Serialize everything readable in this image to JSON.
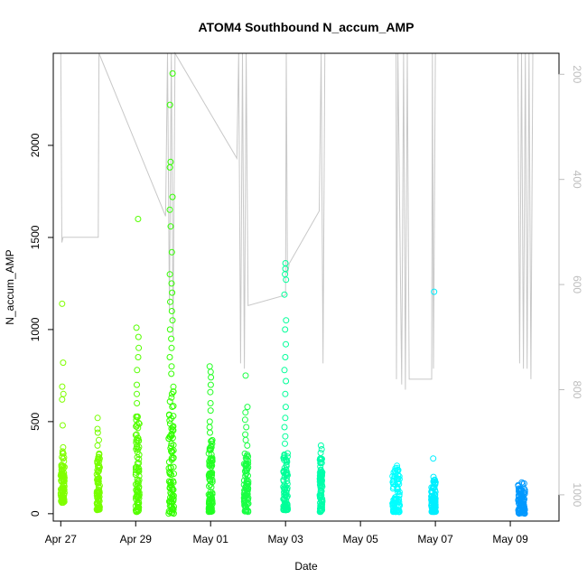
{
  "chart_data": {
    "type": "scatter",
    "title": "ATOM4 Southbound N_accum_AMP",
    "xlabel": "Date",
    "ylabel": "N_accum_AMP",
    "x_ticks": [
      "Apr 27",
      "Apr 29",
      "May 01",
      "May 03",
      "May 05",
      "May 07",
      "May 09"
    ],
    "y_ticks": [
      "0",
      "500",
      "1000",
      "1500",
      "2000"
    ],
    "y2_ticks": [
      "200",
      "400",
      "600",
      "800",
      "1000"
    ],
    "xlim_days": [
      26.8,
      40.3
    ],
    "ylim": [
      -40,
      2500
    ],
    "y2lim": [
      1050,
      160
    ],
    "colors": {
      "axis": "#000000",
      "secondary_axis": "#bdbdbd",
      "overlay_line": "#c8c8c8"
    },
    "point_clusters": [
      {
        "date": "Apr 27",
        "center": 27.05,
        "width": 0.1,
        "ymin": 60,
        "ymax": 340,
        "color": "#80ff00",
        "outliers": [
          1140,
          820,
          690,
          650,
          620,
          480,
          360
        ]
      },
      {
        "date": "Apr 28",
        "center": 28.0,
        "width": 0.08,
        "ymin": 20,
        "ymax": 330,
        "color": "#77ff00",
        "outliers": [
          520,
          460,
          440,
          400,
          370
        ]
      },
      {
        "date": "Apr 29",
        "center": 29.05,
        "width": 0.1,
        "ymin": 10,
        "ymax": 560,
        "color": "#55ff00",
        "outliers": [
          1600,
          1010,
          960,
          900,
          850,
          780,
          700,
          650,
          600
        ]
      },
      {
        "date": "Apr 30",
        "center": 29.95,
        "width": 0.14,
        "ymin": 0,
        "ymax": 700,
        "color": "#33ff00",
        "outliers": [
          2390,
          2220,
          1910,
          1880,
          1720,
          1650,
          1560,
          1420,
          1300,
          1250,
          1200,
          1150,
          1100,
          1050,
          1000,
          950,
          900,
          850,
          800,
          760
        ]
      },
      {
        "date": "May 01",
        "center": 31.0,
        "width": 0.1,
        "ymin": 10,
        "ymax": 420,
        "color": "#22ff22",
        "outliers": [
          800,
          770,
          740,
          700,
          660,
          600,
          560,
          500,
          470,
          440
        ]
      },
      {
        "date": "May 02",
        "center": 31.95,
        "width": 0.12,
        "ymin": 10,
        "ymax": 340,
        "color": "#1aff44",
        "outliers": [
          750,
          580,
          550,
          510,
          470,
          430,
          400,
          370
        ]
      },
      {
        "date": "May 03",
        "center": 33.0,
        "width": 0.12,
        "ymin": 20,
        "ymax": 330,
        "color": "#00ff99",
        "outliers": [
          1360,
          1330,
          1300,
          1270,
          1190,
          1050,
          1000,
          920,
          850,
          780,
          720,
          650,
          580,
          520,
          470,
          420,
          380
        ]
      },
      {
        "date": "May 04",
        "center": 33.95,
        "width": 0.07,
        "ymin": 10,
        "ymax": 300,
        "color": "#00ffaa",
        "outliers": [
          370,
          350,
          330
        ]
      },
      {
        "date": "May 06",
        "center": 35.95,
        "width": 0.2,
        "ymin": 10,
        "ymax": 250,
        "color": "#00ffff",
        "outliers": [
          260
        ]
      },
      {
        "date": "May 07",
        "center": 36.95,
        "width": 0.12,
        "ymin": 10,
        "ymax": 190,
        "color": "#00eeff",
        "outliers": [
          1205,
          300,
          200
        ]
      },
      {
        "date": "May 09",
        "center": 39.3,
        "width": 0.18,
        "ymin": 0,
        "ymax": 165,
        "color": "#0099ff",
        "outliers": [
          170
        ]
      }
    ],
    "overlay_series_y2": [
      [
        27.0,
        160
      ],
      [
        27.03,
        520
      ],
      [
        27.06,
        510
      ],
      [
        28.0,
        510
      ],
      [
        28.02,
        160
      ],
      [
        29.8,
        470
      ],
      [
        29.85,
        160
      ],
      [
        29.9,
        650
      ],
      [
        29.95,
        160
      ],
      [
        30.0,
        700
      ],
      [
        30.05,
        160
      ],
      [
        31.7,
        360
      ],
      [
        31.75,
        160
      ],
      [
        31.8,
        750
      ],
      [
        31.85,
        160
      ],
      [
        31.9,
        760
      ],
      [
        31.95,
        160
      ],
      [
        32.0,
        640
      ],
      [
        33.0,
        620
      ],
      [
        33.02,
        160
      ],
      [
        33.05,
        580
      ],
      [
        33.1,
        560
      ],
      [
        33.9,
        460
      ],
      [
        33.95,
        160
      ],
      [
        34.0,
        750
      ],
      [
        34.05,
        160
      ],
      [
        35.5,
        160
      ],
      [
        35.95,
        160
      ],
      [
        35.96,
        780
      ],
      [
        36.0,
        160
      ],
      [
        36.1,
        790
      ],
      [
        36.15,
        160
      ],
      [
        36.2,
        800
      ],
      [
        36.25,
        160
      ],
      [
        36.3,
        780
      ],
      [
        36.9,
        780
      ],
      [
        36.92,
        160
      ],
      [
        36.95,
        760
      ],
      [
        37.0,
        160
      ],
      [
        39.2,
        160
      ],
      [
        39.25,
        750
      ],
      [
        39.3,
        160
      ],
      [
        39.35,
        760
      ],
      [
        39.4,
        160
      ],
      [
        39.45,
        760
      ],
      [
        39.5,
        160
      ],
      [
        39.55,
        780
      ],
      [
        39.6,
        160
      ]
    ]
  }
}
